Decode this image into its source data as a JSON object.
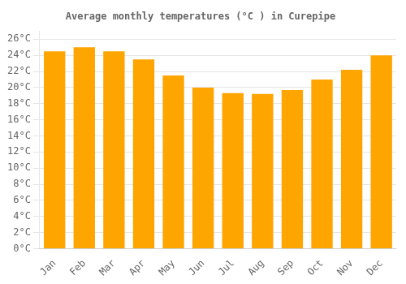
{
  "chart_data": {
    "type": "bar",
    "title": "Average monthly temperatures (°C ) in Curepipe",
    "categories": [
      "Jan",
      "Feb",
      "Mar",
      "Apr",
      "May",
      "Jun",
      "Jul",
      "Aug",
      "Sep",
      "Oct",
      "Nov",
      "Dec"
    ],
    "values": [
      24.5,
      25.0,
      24.5,
      23.5,
      21.5,
      20.0,
      19.3,
      19.2,
      19.7,
      21.0,
      22.2,
      24.0
    ],
    "color": "#FFA500",
    "ylim": [
      0,
      27
    ],
    "yticks": [
      {
        "value": 0,
        "label": "0°C"
      },
      {
        "value": 2,
        "label": "2°C"
      },
      {
        "value": 4,
        "label": "4°C"
      },
      {
        "value": 6,
        "label": "6°C"
      },
      {
        "value": 8,
        "label": "8°C"
      },
      {
        "value": 10,
        "label": "10°C"
      },
      {
        "value": 12,
        "label": "12°C"
      },
      {
        "value": 14,
        "label": "14°C"
      },
      {
        "value": 16,
        "label": "16°C"
      },
      {
        "value": 18,
        "label": "18°C"
      },
      {
        "value": 20,
        "label": "20°C"
      },
      {
        "value": 22,
        "label": "22°C"
      },
      {
        "value": 24,
        "label": "24°C"
      },
      {
        "value": 26,
        "label": "26°C"
      }
    ],
    "grid": true
  }
}
